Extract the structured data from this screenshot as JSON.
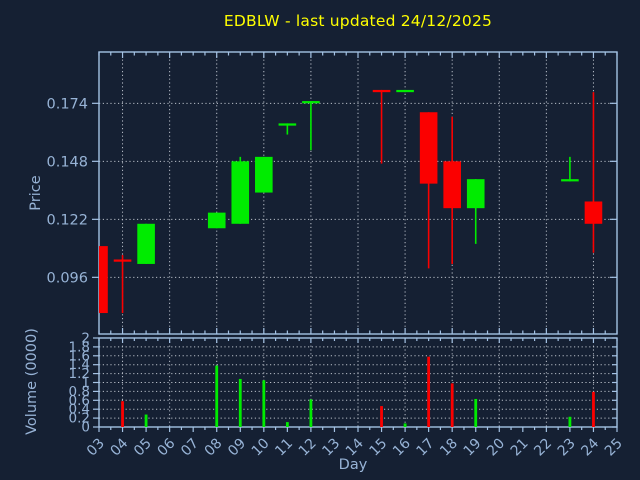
{
  "title": "EDBLW - last updated 24/12/2025",
  "colors": {
    "background": "#152033",
    "axis_border": "#a4c2e4",
    "tick_label": "#97b3d6",
    "grid": "#b8bec8",
    "up": "#00ec00",
    "down": "#fb0000",
    "title": "#ffff00"
  },
  "chart_data": {
    "type": "candlestick",
    "title": "EDBLW - last updated 24/12/2025",
    "xlabel": "Day",
    "grid": true,
    "x_axis": {
      "tick_labels": [
        "03",
        "04",
        "05",
        "06",
        "07",
        "08",
        "09",
        "10",
        "11",
        "12",
        "13",
        "14",
        "15",
        "16",
        "17",
        "18",
        "19",
        "20",
        "21",
        "22",
        "23",
        "24",
        "25"
      ],
      "first_day": 3,
      "last_day": 25,
      "grid_days": [
        4,
        6,
        8,
        10,
        12,
        14,
        16,
        18,
        20,
        22,
        24
      ]
    },
    "price_panel": {
      "ylabel": "Price",
      "tick_labels": [
        "0.174",
        "0.148",
        "0.122",
        "0.096"
      ],
      "tick_values": [
        0.174,
        0.148,
        0.122,
        0.096
      ],
      "ylim": [
        0.0706,
        0.197
      ]
    },
    "volume_panel": {
      "ylabel": "Volume (0000)",
      "tick_labels": [
        "2",
        "1.8",
        "1.6",
        "1.4",
        "1.2",
        "1",
        "0.8",
        "0.6",
        "0.4",
        "0.2",
        "0"
      ],
      "tick_values": [
        2,
        1.8,
        1.6,
        1.4,
        1.2,
        1,
        0.8,
        0.6,
        0.4,
        0.2,
        0
      ],
      "grid_values": [
        1.8,
        1.6,
        1.4,
        1.2,
        1.0,
        0.8,
        0.6,
        0.4,
        0.2
      ],
      "ylim": [
        0,
        2
      ]
    },
    "candles": [
      {
        "label": "03",
        "day": 3,
        "open": 0.11,
        "high": 0.11,
        "low": 0.08,
        "close": 0.08,
        "volume": 0,
        "direction": "down"
      },
      {
        "label": "04",
        "day": 4,
        "open": 0.104,
        "high": 0.106,
        "low": 0.08,
        "close": 0.103,
        "volume": 0.58,
        "direction": "down"
      },
      {
        "label": "05",
        "day": 5,
        "open": 0.102,
        "high": 0.12,
        "low": 0.102,
        "close": 0.12,
        "volume": 0.28,
        "direction": "up"
      },
      {
        "label": "08",
        "day": 8,
        "open": 0.118,
        "high": 0.125,
        "low": 0.118,
        "close": 0.125,
        "volume": 1.38,
        "direction": "up"
      },
      {
        "label": "09",
        "day": 9,
        "open": 0.12,
        "high": 0.15,
        "low": 0.12,
        "close": 0.148,
        "volume": 1.08,
        "direction": "up"
      },
      {
        "label": "10",
        "day": 10,
        "open": 0.134,
        "high": 0.15,
        "low": 0.134,
        "close": 0.15,
        "volume": 1.05,
        "direction": "up"
      },
      {
        "label": "11",
        "day": 11,
        "open": 0.164,
        "high": 0.165,
        "low": 0.16,
        "close": 0.165,
        "volume": 0.11,
        "direction": "up"
      },
      {
        "label": "12",
        "day": 12,
        "open": 0.174,
        "high": 0.175,
        "low": 0.153,
        "close": 0.175,
        "volume": 0.62,
        "direction": "up"
      },
      {
        "label": "15",
        "day": 15,
        "open": 0.18,
        "high": 0.18,
        "low": 0.147,
        "close": 0.179,
        "volume": 0.47,
        "direction": "down"
      },
      {
        "label": "16",
        "day": 16,
        "open": 0.179,
        "high": 0.18,
        "low": 0.179,
        "close": 0.18,
        "volume": 0.08,
        "direction": "up"
      },
      {
        "label": "17",
        "day": 17,
        "open": 0.17,
        "high": 0.17,
        "low": 0.1,
        "close": 0.138,
        "volume": 1.58,
        "direction": "down"
      },
      {
        "label": "18",
        "day": 18,
        "open": 0.148,
        "high": 0.168,
        "low": 0.102,
        "close": 0.127,
        "volume": 0.98,
        "direction": "down"
      },
      {
        "label": "19",
        "day": 19,
        "open": 0.127,
        "high": 0.14,
        "low": 0.111,
        "close": 0.14,
        "volume": 0.63,
        "direction": "up"
      },
      {
        "label": "23",
        "day": 23,
        "open": 0.139,
        "high": 0.15,
        "low": 0.139,
        "close": 0.14,
        "volume": 0.23,
        "direction": "up"
      },
      {
        "label": "24",
        "day": 24,
        "open": 0.13,
        "high": 0.179,
        "low": 0.107,
        "close": 0.12,
        "volume": 0.79,
        "direction": "down"
      }
    ]
  }
}
